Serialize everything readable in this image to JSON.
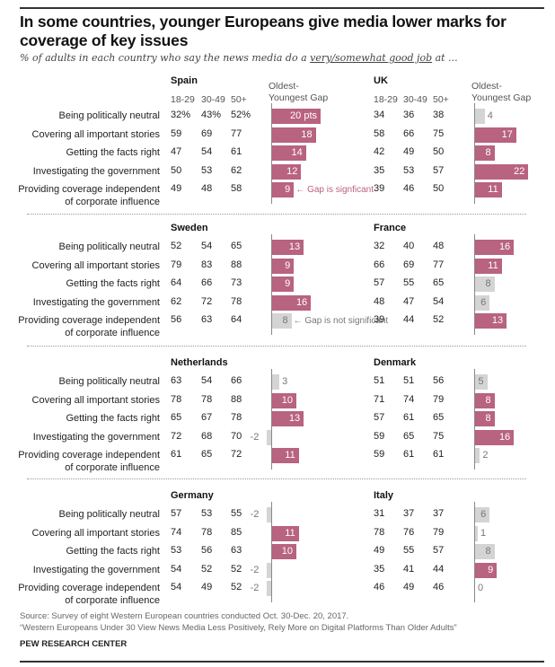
{
  "title": "In some countries, younger Europeans give media lower marks for coverage of key issues",
  "subtitle_pre": "% of adults in each country who say the news media do a ",
  "subtitle_em": "very/somewhat good job",
  "subtitle_post": " at ...",
  "col_headers": [
    "18-29",
    "30-49",
    "50+"
  ],
  "gap_header_line1": "Oldest-",
  "gap_header_line2": "Youngest Gap",
  "annotations": {
    "significant": "Gap is signficant",
    "not_significant": "Gap is not significant"
  },
  "footer": {
    "source": "Source: Survey of eight Western European countries conducted Oct. 30-Dec. 20, 2017.",
    "report": "“Western Europeans Under 30 View News Media Less Positively, Rely More on Digital Platforms Than Older Adults”",
    "brand": "PEW RESEARCH CENTER"
  },
  "colors": {
    "significant": "#b8637f",
    "not_significant": "#d4d4d4"
  },
  "chart_data": {
    "type": "table",
    "title": "In some countries, younger Europeans give media lower marks for coverage of key issues",
    "row_labels": [
      "Being politically neutral",
      "Covering all important stories",
      "Getting the facts right",
      "Investigating the government",
      "Providing coverage independent of corporate influence"
    ],
    "row_labels_wrapped": [
      [
        "Being politically neutral"
      ],
      [
        "Covering all important stories"
      ],
      [
        "Getting the facts right"
      ],
      [
        "Investigating the government"
      ],
      [
        "Providing coverage independent",
        "of corporate influence"
      ]
    ],
    "columns": [
      "18-29",
      "30-49",
      "50+",
      "Oldest-Youngest Gap"
    ],
    "countries": [
      {
        "name": "Spain",
        "values": [
          [
            "32%",
            "43%",
            "52%"
          ],
          [
            "59",
            "69",
            "77"
          ],
          [
            "47",
            "54",
            "61"
          ],
          [
            "50",
            "53",
            "62"
          ],
          [
            "49",
            "48",
            "58"
          ]
        ],
        "gaps": [
          20,
          18,
          14,
          12,
          9
        ],
        "gap_labels": [
          "20 pts",
          "18",
          "14",
          "12",
          "9"
        ],
        "significant": [
          true,
          true,
          true,
          true,
          true
        ]
      },
      {
        "name": "UK",
        "values": [
          [
            "34",
            "36",
            "38"
          ],
          [
            "58",
            "66",
            "75"
          ],
          [
            "42",
            "49",
            "50"
          ],
          [
            "35",
            "53",
            "57"
          ],
          [
            "39",
            "46",
            "50"
          ]
        ],
        "gaps": [
          4,
          17,
          8,
          22,
          11
        ],
        "gap_labels": [
          "4",
          "17",
          "8",
          "22",
          "11"
        ],
        "significant": [
          false,
          true,
          true,
          true,
          true
        ]
      },
      {
        "name": "Sweden",
        "values": [
          [
            "52",
            "54",
            "65"
          ],
          [
            "79",
            "83",
            "88"
          ],
          [
            "64",
            "66",
            "73"
          ],
          [
            "62",
            "72",
            "78"
          ],
          [
            "56",
            "63",
            "64"
          ]
        ],
        "gaps": [
          13,
          9,
          9,
          16,
          8
        ],
        "gap_labels": [
          "13",
          "9",
          "9",
          "16",
          "8"
        ],
        "significant": [
          true,
          true,
          true,
          true,
          false
        ]
      },
      {
        "name": "France",
        "values": [
          [
            "32",
            "40",
            "48"
          ],
          [
            "66",
            "69",
            "77"
          ],
          [
            "57",
            "55",
            "65"
          ],
          [
            "48",
            "47",
            "54"
          ],
          [
            "39",
            "44",
            "52"
          ]
        ],
        "gaps": [
          16,
          11,
          8,
          6,
          13
        ],
        "gap_labels": [
          "16",
          "11",
          "8",
          "6",
          "13"
        ],
        "significant": [
          true,
          true,
          false,
          false,
          true
        ]
      },
      {
        "name": "Netherlands",
        "values": [
          [
            "63",
            "54",
            "66"
          ],
          [
            "78",
            "78",
            "88"
          ],
          [
            "65",
            "67",
            "78"
          ],
          [
            "72",
            "68",
            "70"
          ],
          [
            "61",
            "65",
            "72"
          ]
        ],
        "gaps": [
          3,
          10,
          13,
          -2,
          11
        ],
        "gap_labels": [
          "3",
          "10",
          "13",
          "-2",
          "11"
        ],
        "significant": [
          false,
          true,
          true,
          false,
          true
        ]
      },
      {
        "name": "Denmark",
        "values": [
          [
            "51",
            "51",
            "56"
          ],
          [
            "71",
            "74",
            "79"
          ],
          [
            "57",
            "61",
            "65"
          ],
          [
            "59",
            "65",
            "75"
          ],
          [
            "59",
            "61",
            "61"
          ]
        ],
        "gaps": [
          5,
          8,
          8,
          16,
          2
        ],
        "gap_labels": [
          "5",
          "8",
          "8",
          "16",
          "2"
        ],
        "significant": [
          false,
          true,
          true,
          true,
          false
        ]
      },
      {
        "name": "Germany",
        "values": [
          [
            "57",
            "53",
            "55"
          ],
          [
            "74",
            "78",
            "85"
          ],
          [
            "53",
            "56",
            "63"
          ],
          [
            "54",
            "52",
            "52"
          ],
          [
            "54",
            "49",
            "52"
          ]
        ],
        "gaps": [
          -2,
          11,
          10,
          -2,
          -2
        ],
        "gap_labels": [
          "-2",
          "11",
          "10",
          "-2",
          "-2"
        ],
        "significant": [
          false,
          true,
          true,
          false,
          false
        ]
      },
      {
        "name": "Italy",
        "values": [
          [
            "31",
            "37",
            "37"
          ],
          [
            "78",
            "76",
            "79"
          ],
          [
            "49",
            "55",
            "57"
          ],
          [
            "35",
            "41",
            "44"
          ],
          [
            "46",
            "49",
            "46"
          ]
        ],
        "gaps": [
          6,
          1,
          8,
          9,
          0
        ],
        "gap_labels": [
          "6",
          "1",
          "8",
          "9",
          "0"
        ],
        "significant": [
          false,
          false,
          false,
          true,
          false
        ]
      }
    ]
  }
}
